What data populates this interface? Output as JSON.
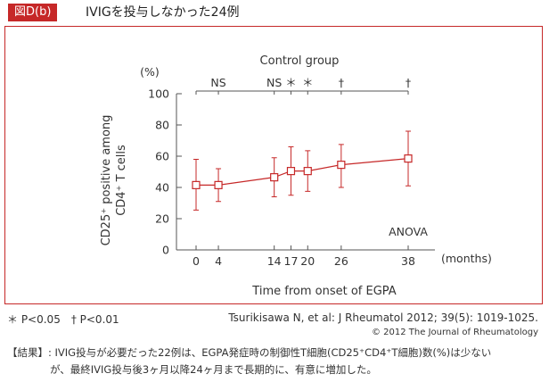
{
  "header": {
    "badge": "図D(b)",
    "title": "IVIGを投与しなかった24例"
  },
  "chart_data": {
    "type": "line",
    "title": "Control group",
    "xlabel": "Time from onset of EGPA",
    "x_unit": "(months)",
    "ylabel_line1": "CD25⁺ positive among",
    "ylabel_line2": "CD4⁺ T cells",
    "y_unit": "(%)",
    "ylim": [
      0,
      100
    ],
    "yticks": [
      0,
      20,
      40,
      60,
      80,
      100
    ],
    "x": [
      0,
      4,
      14,
      17,
      20,
      26,
      38
    ],
    "series": [
      {
        "values": [
          41.5,
          41.5,
          46.5,
          50.5,
          50.5,
          54.5,
          58.5
        ],
        "lower": [
          25.5,
          31,
          34,
          35,
          37.5,
          40,
          41
        ],
        "upper": [
          58,
          52,
          59,
          66,
          63.5,
          67.5,
          76
        ],
        "color": "#c62828"
      }
    ],
    "significance": [
      {
        "x": 4,
        "label": "NS"
      },
      {
        "x": 14,
        "label": "NS"
      },
      {
        "x": 17,
        "label": "＊"
      },
      {
        "x": 20,
        "label": "＊"
      },
      {
        "x": 26,
        "label": "†"
      },
      {
        "x": 38,
        "label": "†"
      }
    ],
    "annotation": "ANOVA",
    "grid": false,
    "axis_color": "#555555"
  },
  "footer": {
    "legend": "＊ P<0.05　† P<0.01",
    "citation": "Tsurikisawa N, et al: J Rheumatol 2012; 39(5): 1019-1025.",
    "copyright": "© 2012 The Journal of Rheumatology"
  },
  "result": {
    "line1": "【結果】: IVIG投与が必要だった22例は、EGPA発症時の制御性T細胞(CD25⁺CD4⁺T細胞)数(%)は少ない",
    "line2": "が、最終IVIG投与後3ヶ月以降24ヶ月まで長期的に、有意に増加した。"
  }
}
